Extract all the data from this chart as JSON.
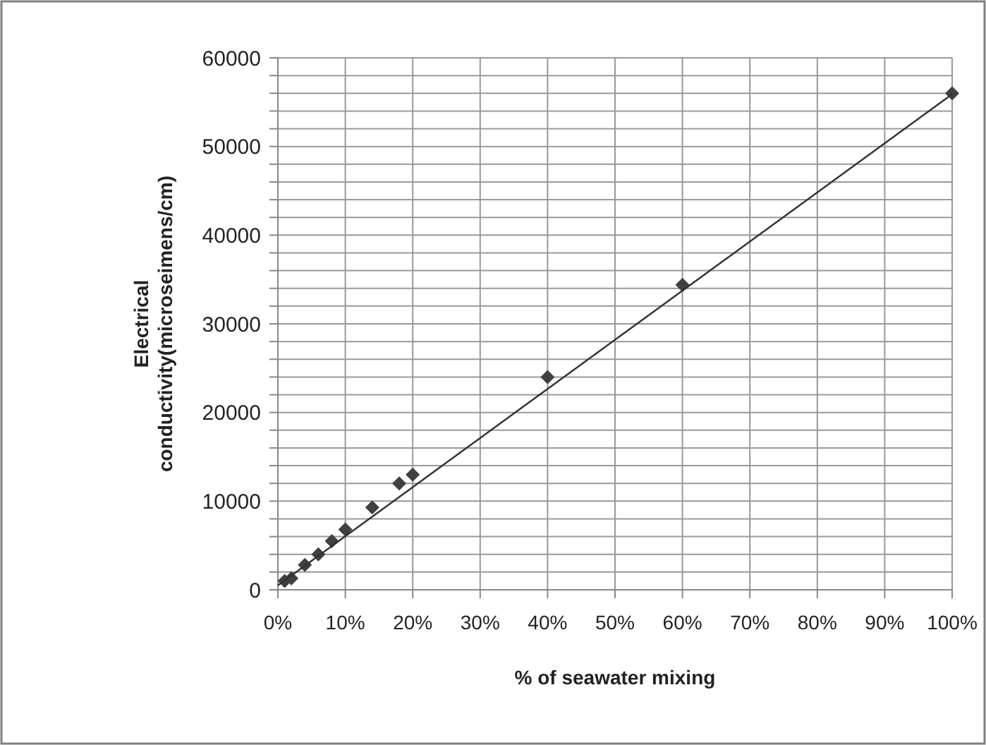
{
  "chart_data": {
    "type": "scatter",
    "xlabel": "% of seawater mixing",
    "ylabel": "Electrical conductivity(microseimens/cm)",
    "series": [
      {
        "color": "#404040",
        "marker": "diamond",
        "x": [
          1,
          2,
          4,
          6,
          8,
          10,
          14,
          18,
          20,
          40,
          60,
          100
        ],
        "values": [
          1000,
          1300,
          2800,
          4000,
          5500,
          6800,
          9300,
          12000,
          13000,
          24000,
          34400,
          56000
        ]
      },
      {
        "type": "line",
        "color": "#303030",
        "marker": "none",
        "x": [
          0,
          100
        ],
        "values": [
          500,
          55900
        ]
      }
    ],
    "xlim": [
      0,
      100
    ],
    "xticks": [
      {
        "value": 0,
        "label": "0%"
      },
      {
        "value": 10,
        "label": "10%"
      },
      {
        "value": 20,
        "label": "20%"
      },
      {
        "value": 30,
        "label": "30%"
      },
      {
        "value": 40,
        "label": "40%"
      },
      {
        "value": 50,
        "label": "50%"
      },
      {
        "value": 60,
        "label": "60%"
      },
      {
        "value": 70,
        "label": "70%"
      },
      {
        "value": 80,
        "label": "80%"
      },
      {
        "value": 90,
        "label": "90%"
      },
      {
        "value": 100,
        "label": "100%"
      }
    ],
    "ylim": [
      0,
      60000
    ],
    "yticks": [
      0,
      {
        "value": 2000,
        "label": null
      },
      {
        "value": 4000,
        "label": null
      },
      {
        "value": 6000,
        "label": null
      },
      {
        "value": 8000,
        "label": null
      },
      10000,
      {
        "value": 12000,
        "label": null
      },
      {
        "value": 14000,
        "label": null
      },
      {
        "value": 16000,
        "label": null
      },
      {
        "value": 18000,
        "label": null
      },
      20000,
      {
        "value": 22000,
        "label": null
      },
      {
        "value": 24000,
        "label": null
      },
      {
        "value": 26000,
        "label": null
      },
      {
        "value": 28000,
        "label": null
      },
      30000,
      {
        "value": 32000,
        "label": null
      },
      {
        "value": 34000,
        "label": null
      },
      {
        "value": 36000,
        "label": null
      },
      {
        "value": 38000,
        "label": null
      },
      40000,
      {
        "value": 42000,
        "label": null
      },
      {
        "value": 44000,
        "label": null
      },
      {
        "value": 46000,
        "label": null
      },
      {
        "value": 48000,
        "label": null
      },
      50000,
      {
        "value": 52000,
        "label": null
      },
      {
        "value": 54000,
        "label": null
      },
      {
        "value": 56000,
        "label": null
      },
      {
        "value": 58000,
        "label": null
      },
      60000
    ],
    "grid": true
  }
}
